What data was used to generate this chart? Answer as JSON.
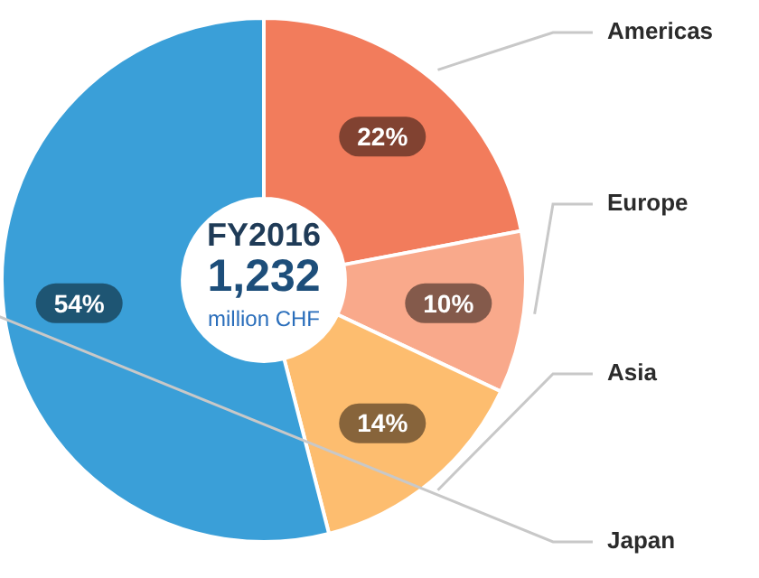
{
  "chart_data": {
    "type": "donut",
    "title": "FY2016",
    "subtitle": "1,232",
    "annotations": [
      "million CHF"
    ],
    "categories": [
      "Americas",
      "Europe",
      "Asia",
      "Japan"
    ],
    "values": [
      22,
      10,
      14,
      54
    ],
    "colors": [
      "#f27c5c",
      "#f9a98b",
      "#fdbd6f",
      "#3a9fd8"
    ],
    "value_labels": [
      "22%",
      "10%",
      "14%",
      "54%"
    ],
    "legend": false
  }
}
